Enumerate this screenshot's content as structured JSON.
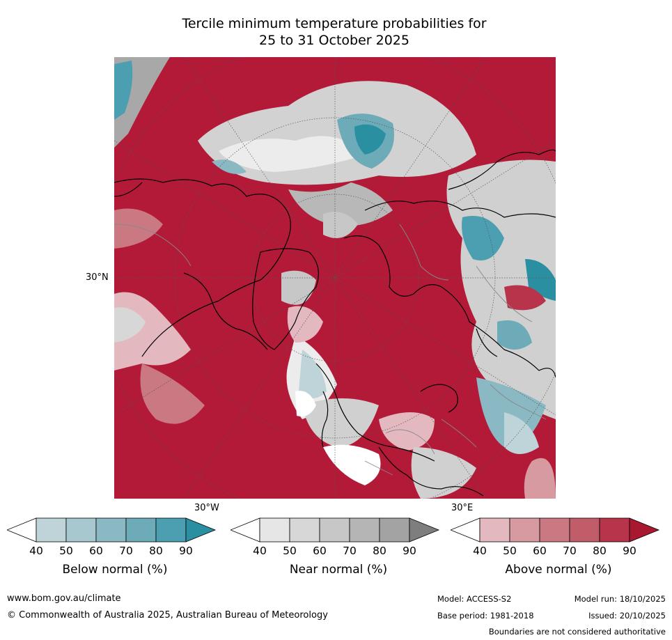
{
  "title": {
    "line1": "Tercile minimum temperature probabilities for",
    "line2": "25 to 31 October 2025"
  },
  "map": {
    "projection": "polar stereographic, north pole",
    "lat_label": "30°N",
    "lon_labels": [
      "30°W",
      "30°E"
    ],
    "colors": {
      "background_above": "#b31a38",
      "coast": "#000000",
      "borders": "#888888",
      "graticule": "#555555"
    }
  },
  "colorbars": [
    {
      "label": "Below normal (%)",
      "ticks": [
        "40",
        "50",
        "60",
        "70",
        "80",
        "90"
      ],
      "colors": [
        "#ffffff",
        "#bed4d9",
        "#a7c8ce",
        "#8ab8c3",
        "#6cabb7",
        "#4b9fb0",
        "#2b8fa2"
      ]
    },
    {
      "label": "Near normal (%)",
      "ticks": [
        "40",
        "50",
        "60",
        "70",
        "80",
        "90"
      ],
      "colors": [
        "#ffffff",
        "#e6e6e6",
        "#d7d7d7",
        "#c7c7c7",
        "#b5b5b5",
        "#a3a3a3",
        "#7e7e7e"
      ]
    },
    {
      "label": "Above normal (%)",
      "ticks": [
        "40",
        "50",
        "60",
        "70",
        "80",
        "90"
      ],
      "colors": [
        "#ffffff",
        "#e3b9bf",
        "#d79aa1",
        "#ca7983",
        "#c05d69",
        "#b8344b",
        "#a8182f"
      ]
    }
  ],
  "footer": {
    "website": "www.bom.gov.au/climate",
    "copyright": "© Commonwealth of Australia 2025, Australian Bureau of Meteorology",
    "model": "Model: ACCESS-S2",
    "model_run": "Model run: 18/10/2025",
    "base_period": "Base period: 1981-2018",
    "issued": "Issued: 20/10/2025",
    "disclaimer": "Boundaries are not considered authoritative"
  }
}
